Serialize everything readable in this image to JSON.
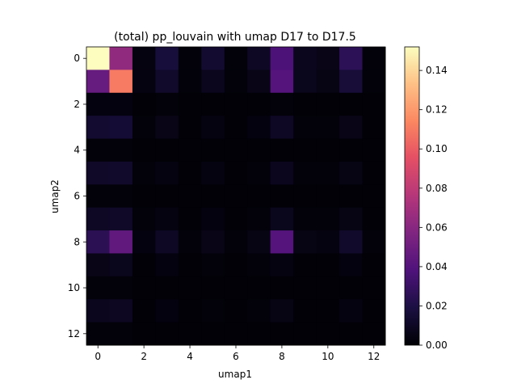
{
  "chart_data": {
    "type": "heatmap",
    "title": "(total) pp_louvain with umap D17 to D17.5",
    "xlabel": "umap1",
    "ylabel": "umap2",
    "x_ticks": [
      0,
      2,
      4,
      6,
      8,
      10,
      12
    ],
    "y_ticks": [
      0,
      2,
      4,
      6,
      8,
      10,
      12
    ],
    "rows": 13,
    "cols": 13,
    "colormap": "magma",
    "vmin": 0.0,
    "vmax": 0.152,
    "colorbar_ticks": [
      "0.00",
      "0.02",
      "0.04",
      "0.06",
      "0.08",
      "0.10",
      "0.12",
      "0.14"
    ],
    "values": [
      [
        0.152,
        0.063,
        0.004,
        0.017,
        0.002,
        0.014,
        0.002,
        0.01,
        0.037,
        0.008,
        0.006,
        0.026,
        0.002
      ],
      [
        0.047,
        0.11,
        0.004,
        0.012,
        0.002,
        0.008,
        0.002,
        0.006,
        0.04,
        0.007,
        0.005,
        0.016,
        0.002
      ],
      [
        0.003,
        0.003,
        0.001,
        0.002,
        0.001,
        0.001,
        0.001,
        0.001,
        0.002,
        0.001,
        0.001,
        0.001,
        0.001
      ],
      [
        0.014,
        0.015,
        0.002,
        0.006,
        0.001,
        0.004,
        0.001,
        0.003,
        0.01,
        0.002,
        0.002,
        0.006,
        0.001
      ],
      [
        0.002,
        0.002,
        0.001,
        0.001,
        0.001,
        0.001,
        0.001,
        0.001,
        0.001,
        0.001,
        0.001,
        0.001,
        0.001
      ],
      [
        0.011,
        0.012,
        0.002,
        0.004,
        0.001,
        0.004,
        0.001,
        0.002,
        0.008,
        0.002,
        0.002,
        0.005,
        0.001
      ],
      [
        0.002,
        0.002,
        0.001,
        0.001,
        0.001,
        0.001,
        0.001,
        0.001,
        0.001,
        0.001,
        0.001,
        0.001,
        0.001
      ],
      [
        0.01,
        0.011,
        0.002,
        0.004,
        0.001,
        0.003,
        0.001,
        0.002,
        0.007,
        0.002,
        0.002,
        0.005,
        0.001
      ],
      [
        0.025,
        0.045,
        0.003,
        0.01,
        0.002,
        0.006,
        0.002,
        0.005,
        0.04,
        0.005,
        0.004,
        0.012,
        0.002
      ],
      [
        0.006,
        0.007,
        0.001,
        0.003,
        0.001,
        0.002,
        0.001,
        0.002,
        0.004,
        0.001,
        0.001,
        0.003,
        0.001
      ],
      [
        0.002,
        0.002,
        0.001,
        0.001,
        0.001,
        0.001,
        0.001,
        0.001,
        0.001,
        0.001,
        0.001,
        0.001,
        0.001
      ],
      [
        0.008,
        0.009,
        0.001,
        0.003,
        0.001,
        0.002,
        0.001,
        0.002,
        0.005,
        0.001,
        0.001,
        0.004,
        0.001
      ],
      [
        0.002,
        0.002,
        0.001,
        0.001,
        0.001,
        0.001,
        0.001,
        0.001,
        0.001,
        0.001,
        0.001,
        0.001,
        0.001
      ]
    ]
  }
}
